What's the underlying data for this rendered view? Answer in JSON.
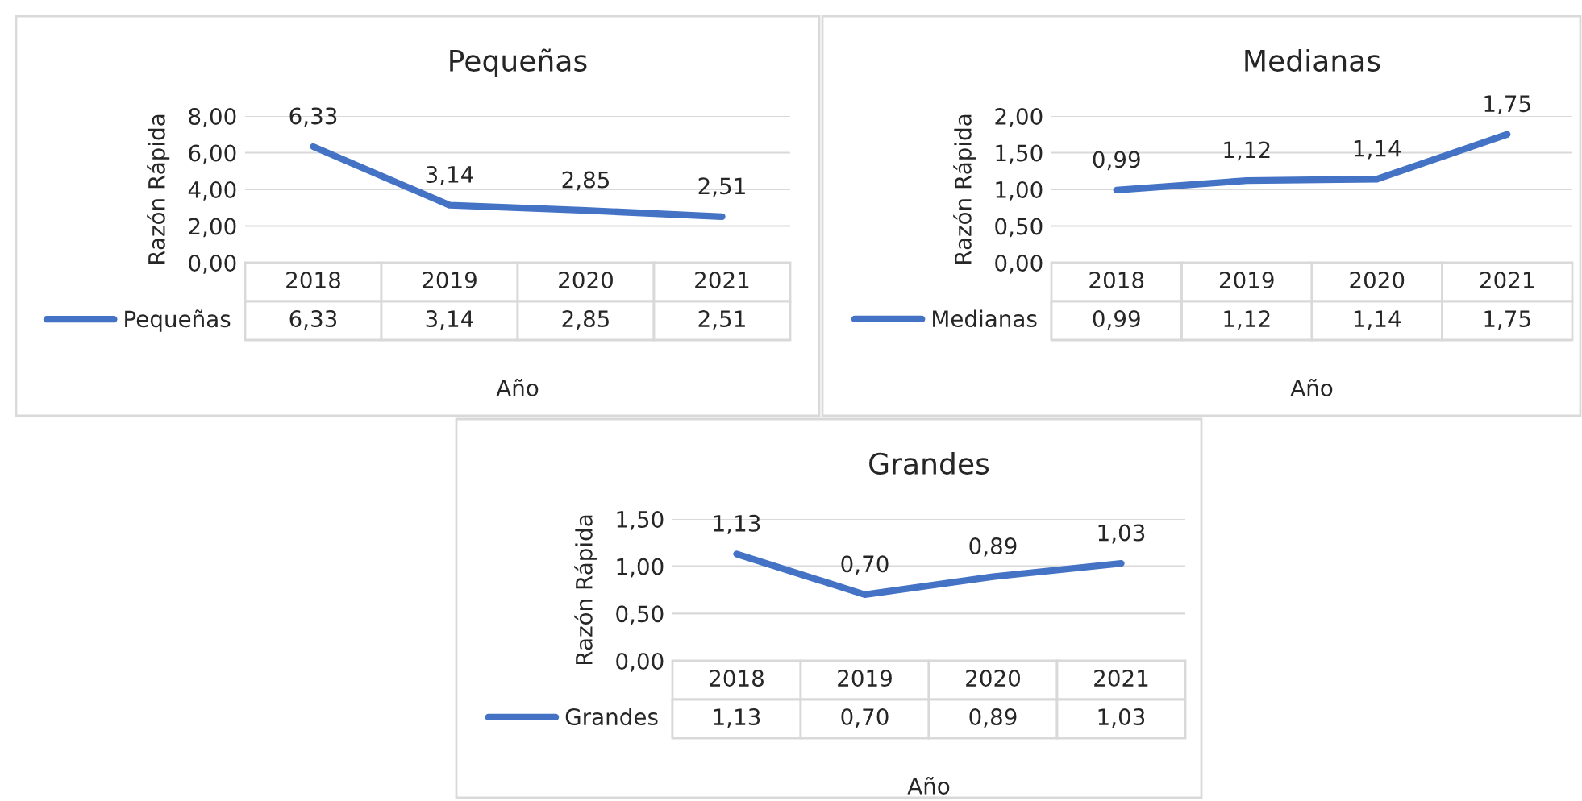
{
  "chart_data": [
    {
      "type": "line",
      "title": "Pequeñas",
      "xlabel": "Año",
      "ylabel": "Razón Rápida",
      "categories": [
        "2018",
        "2019",
        "2020",
        "2021"
      ],
      "series": [
        {
          "name": "Pequeñas",
          "color": "#4472c4",
          "values": [
            6.33,
            3.14,
            2.85,
            2.51
          ],
          "value_labels": [
            "6,33",
            "3,14",
            "2,85",
            "2,51"
          ]
        }
      ],
      "ylim": [
        0,
        8
      ],
      "yticks": [
        {
          "value": 0,
          "label": "0,00"
        },
        {
          "value": 2,
          "label": "2,00"
        },
        {
          "value": 4,
          "label": "4,00"
        },
        {
          "value": 6,
          "label": "6,00"
        },
        {
          "value": 8,
          "label": "8,00"
        }
      ],
      "grid": "y",
      "legend": "bottom",
      "tick_labels": "y",
      "marker": "none",
      "line_style": "solid"
    },
    {
      "type": "line",
      "title": "Medianas",
      "xlabel": "Año",
      "ylabel": "Razón Rápida",
      "categories": [
        "2018",
        "2019",
        "2020",
        "2021"
      ],
      "series": [
        {
          "name": "Medianas",
          "color": "#4472c4",
          "values": [
            0.99,
            1.12,
            1.14,
            1.75
          ],
          "value_labels": [
            "0,99",
            "1,12",
            "1,14",
            "1,75"
          ]
        }
      ],
      "ylim": [
        0,
        2
      ],
      "yticks": [
        {
          "value": 0,
          "label": "0,00"
        },
        {
          "value": 0.5,
          "label": "0,50"
        },
        {
          "value": 1,
          "label": "1,00"
        },
        {
          "value": 1.5,
          "label": "1,50"
        },
        {
          "value": 2,
          "label": "2,00"
        }
      ],
      "grid": "y",
      "legend": "bottom",
      "tick_labels": "y",
      "marker": "none",
      "line_style": "solid"
    },
    {
      "type": "line",
      "title": "Grandes",
      "xlabel": "Año",
      "ylabel": "Razón Rápida",
      "categories": [
        "2018",
        "2019",
        "2020",
        "2021"
      ],
      "series": [
        {
          "name": "Grandes",
          "color": "#4472c4",
          "values": [
            1.13,
            0.7,
            0.89,
            1.03
          ],
          "value_labels": [
            "1,13",
            "0,70",
            "0,89",
            "1,03"
          ]
        }
      ],
      "ylim": [
        0,
        1.5
      ],
      "yticks": [
        {
          "value": 0,
          "label": "0,00"
        },
        {
          "value": 0.5,
          "label": "0,50"
        },
        {
          "value": 1,
          "label": "1,00"
        },
        {
          "value": 1.5,
          "label": "1,50"
        }
      ],
      "grid": "y",
      "legend": "bottom",
      "tick_labels": "y",
      "marker": "none",
      "line_style": "solid"
    }
  ]
}
